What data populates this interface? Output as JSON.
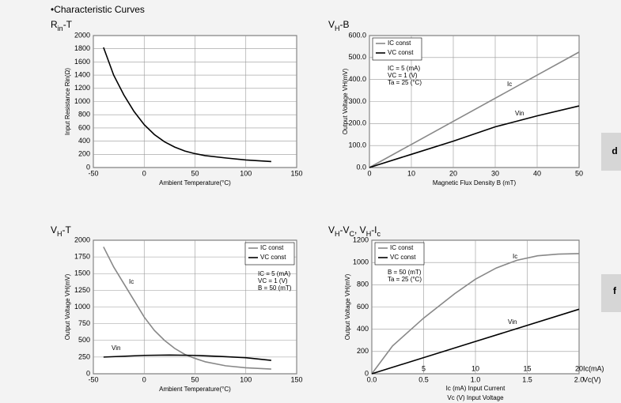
{
  "page_title": "•Characteristic Curves",
  "side_tabs": [
    "d",
    "f"
  ],
  "chart_data": [
    {
      "type": "line",
      "title": [
        "R",
        "in",
        "-T"
      ],
      "xlabel": "Ambient Temperature(°C)",
      "ylabel": "Input Resistance Rin(Ω)",
      "xlim": [
        -50,
        150
      ],
      "xticks": [
        -50,
        0,
        50,
        100,
        150
      ],
      "ylim": [
        0,
        2000
      ],
      "yticks": [
        0,
        200,
        400,
        600,
        800,
        1000,
        1200,
        1400,
        1600,
        1800,
        2000
      ],
      "grid": true,
      "series": [
        {
          "color": "#000000",
          "x": [
            -40,
            -30,
            -20,
            -10,
            0,
            10,
            20,
            30,
            40,
            50,
            60,
            80,
            100,
            125
          ],
          "values": [
            1820,
            1400,
            1100,
            850,
            650,
            500,
            390,
            310,
            250,
            210,
            180,
            145,
            115,
            90
          ]
        }
      ]
    },
    {
      "type": "line",
      "title": [
        "V",
        "H",
        "-B"
      ],
      "xlabel": "Magnetic Flux Density B (mT)",
      "ylabel": "Output Voltage VH(mV)",
      "xlim": [
        0,
        50
      ],
      "xticks": [
        0,
        10,
        20,
        30,
        40,
        50
      ],
      "ylim": [
        0,
        600
      ],
      "yticks": [
        {
          "value": 0,
          "label": "0.0"
        },
        {
          "value": 100,
          "label": "100.0"
        },
        {
          "value": 200,
          "label": "200.0"
        },
        {
          "value": 300,
          "label": "300.0"
        },
        {
          "value": 400,
          "label": "400.0"
        },
        {
          "value": 500,
          "label": "500.0"
        },
        {
          "value": 600,
          "label": "600.0"
        }
      ],
      "grid": true,
      "legend": "upper left",
      "series": [
        {
          "name": "IC const",
          "color": "#888888",
          "x": [
            0,
            10,
            20,
            30,
            40,
            50
          ],
          "values": [
            0,
            105,
            210,
            315,
            420,
            525
          ]
        },
        {
          "name": "VC const",
          "color": "#000000",
          "x": [
            0,
            10,
            20,
            30,
            40,
            50
          ],
          "values": [
            0,
            60,
            120,
            185,
            235,
            280
          ]
        }
      ],
      "annotations": [
        "IC = 5 (mA)",
        "VC = 1 (V)",
        "Ta = 25 (°C)"
      ],
      "curve_labels": [
        "Ic",
        "Vin"
      ]
    },
    {
      "type": "line",
      "title": [
        "V",
        "H",
        "-T"
      ],
      "xlabel": "Ambient Temperature(°C)",
      "ylabel": "Output Voltage VH(mV)",
      "xlim": [
        -50,
        150
      ],
      "xticks": [
        -50,
        0,
        50,
        100,
        150
      ],
      "ylim": [
        0,
        2000
      ],
      "yticks": [
        0,
        250,
        500,
        750,
        1000,
        1250,
        1500,
        1750,
        2000
      ],
      "grid": true,
      "legend": "upper right",
      "series": [
        {
          "name": "IC const",
          "color": "#888888",
          "x": [
            -40,
            -30,
            -20,
            -10,
            0,
            10,
            20,
            30,
            40,
            50,
            60,
            80,
            100,
            125
          ],
          "values": [
            1900,
            1600,
            1350,
            1100,
            850,
            650,
            500,
            380,
            290,
            230,
            180,
            120,
            90,
            70
          ]
        },
        {
          "name": "VC const",
          "color": "#000000",
          "x": [
            -40,
            0,
            25,
            50,
            75,
            100,
            125
          ],
          "values": [
            250,
            275,
            280,
            275,
            260,
            240,
            200
          ]
        }
      ],
      "annotations": [
        "IC = 5 (mA)",
        "VC = 1 (V)",
        "B = 50 (mT)"
      ],
      "curve_labels": [
        "Ic",
        "Vin"
      ]
    },
    {
      "type": "line",
      "title": [
        "V",
        "H",
        "-V",
        "C",
        ", V",
        "H",
        "-I",
        "c"
      ],
      "xlabel": [
        "Ic (mA)  Input Current",
        "Vc (V)  Input Voltage"
      ],
      "ylabel": "Output Voltage VH(mV)",
      "xlim": [
        0,
        2.0
      ],
      "xticks": [
        {
          "value": 0,
          "label": "0.0"
        },
        0.5,
        {
          "value": 1,
          "label": "1.0"
        },
        1.5,
        {
          "value": 2,
          "label": "2.0"
        }
      ],
      "x_unit": "Vc(V)",
      "x2lim": [
        0,
        20
      ],
      "x2ticks": [
        5,
        10,
        15,
        20
      ],
      "x2_unit": "Ic(mA)",
      "ylim": [
        0,
        1200
      ],
      "yticks": [
        0,
        200,
        400,
        600,
        800,
        1000,
        1200
      ],
      "grid": true,
      "legend": "upper left",
      "series": [
        {
          "name": "IC const",
          "color": "#888888",
          "x": [
            0,
            0.2,
            0.5,
            0.8,
            1.0,
            1.2,
            1.4,
            1.6,
            1.8,
            2.0
          ],
          "values": [
            0,
            250,
            500,
            720,
            850,
            950,
            1020,
            1060,
            1075,
            1080
          ]
        },
        {
          "name": "VC const",
          "color": "#000000",
          "x": [
            0,
            1.0,
            2.0
          ],
          "values": [
            0,
            290,
            580
          ]
        }
      ],
      "annotations": [
        "B = 50 (mT)",
        "Ta = 25 (°C)"
      ],
      "curve_labels": [
        "Ic",
        "Vin"
      ]
    }
  ]
}
